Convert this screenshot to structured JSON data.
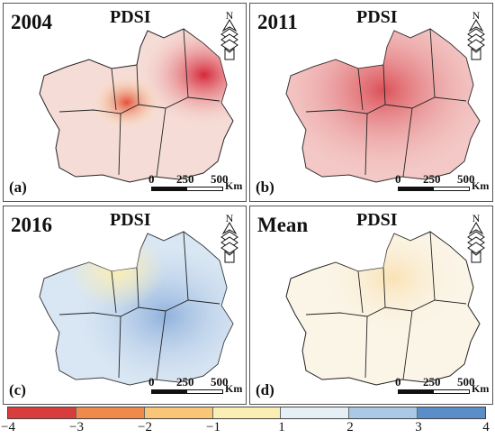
{
  "panels": [
    {
      "id": "a",
      "year": "2004",
      "variable": "PDSI",
      "tag": "(a)",
      "has_north": true,
      "has_scale": true
    },
    {
      "id": "b",
      "year": "2011",
      "variable": "PDSI",
      "tag": "(b)",
      "has_north": true,
      "has_scale": true
    },
    {
      "id": "c",
      "year": "2016",
      "variable": "PDSI",
      "tag": "(c)",
      "has_north": true,
      "has_scale": true
    },
    {
      "id": "d",
      "year": "Mean",
      "variable": "PDSI",
      "tag": "(d)",
      "has_north": true,
      "has_scale": true
    }
  ],
  "north_label": "N",
  "scale": {
    "labels": [
      "0",
      "250",
      "500"
    ],
    "unit": "Km"
  },
  "legend": {
    "ticks": [
      "−4",
      "−3",
      "−2",
      "−1",
      "1",
      "2",
      "3",
      "4"
    ],
    "colors": [
      "#d93c3c",
      "#f08a4b",
      "#f8c676",
      "#fbeeb4",
      "#e4f0f6",
      "#a9c9e6",
      "#5b8ec8"
    ]
  },
  "map_fill": {
    "a": {
      "base": "#f6dcd6",
      "spot": "#e0464c"
    },
    "b": {
      "base": "#f3c8c6",
      "spot": "#d83a40"
    },
    "c": {
      "base": "#d9e6f3",
      "spot": "#8fb1dc"
    },
    "d": {
      "base": "#fbf5e8",
      "spot": "#f9e2b4"
    }
  }
}
